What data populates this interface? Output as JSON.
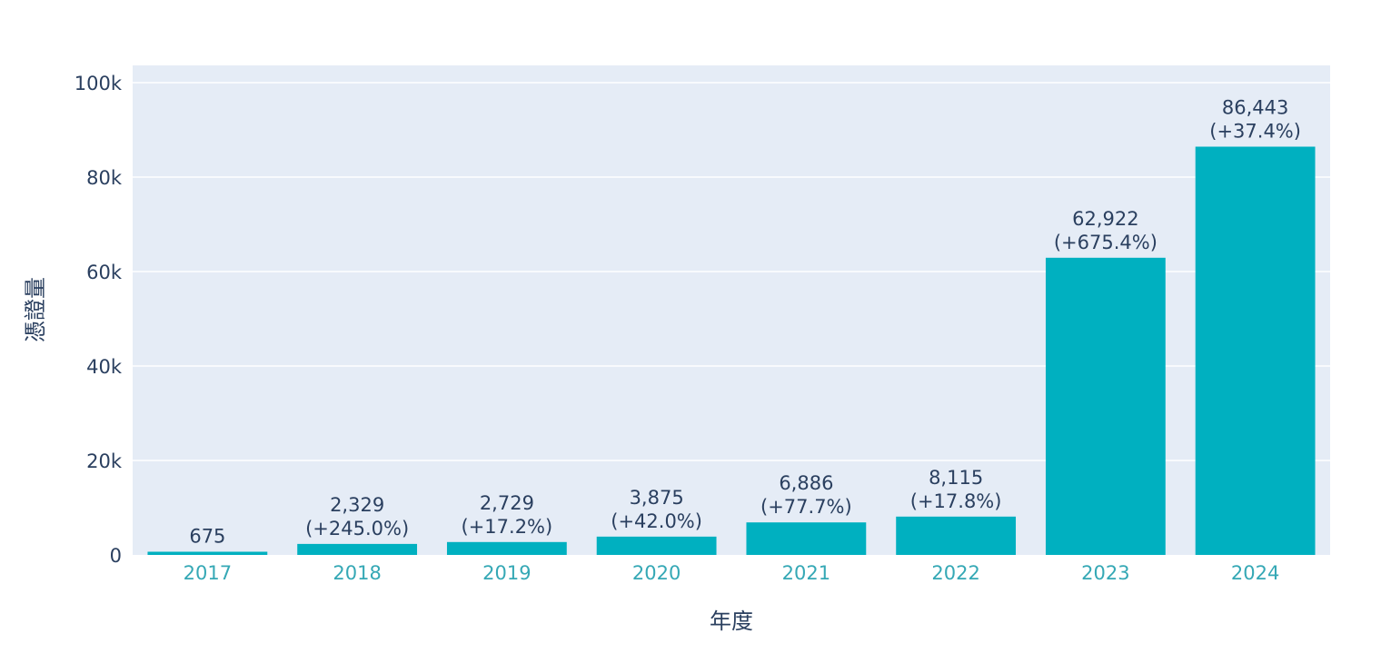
{
  "chart_data": {
    "type": "bar",
    "title": "",
    "xlabel": "年度",
    "ylabel": "憑證量",
    "categories": [
      "2017",
      "2018",
      "2019",
      "2020",
      "2021",
      "2022",
      "2023",
      "2024"
    ],
    "values": [
      675,
      2329,
      2729,
      3875,
      6886,
      8115,
      62922,
      86443
    ],
    "value_labels": [
      "675",
      "2,329",
      "2,729",
      "3,875",
      "6,886",
      "8,115",
      "62,922",
      "86,443"
    ],
    "growth_labels": [
      "",
      "(+245.0%)",
      "(+17.2%)",
      "(+42.0%)",
      "(+77.7%)",
      "(+17.8%)",
      "(+675.4%)",
      "(+37.4%)"
    ],
    "ylim": [
      0,
      103500
    ],
    "yticks": [
      0,
      20000,
      40000,
      60000,
      80000,
      100000
    ],
    "ytick_labels": [
      "0",
      "20k",
      "40k",
      "60k",
      "80k",
      "100k"
    ],
    "grid": true,
    "legend": "none",
    "colors": {
      "bar": "#00b0c0",
      "plot_background": "#e5ecf6",
      "gridline": "#ffffff",
      "text": "#2a3f5f",
      "xtick_text": "#35a8b5"
    }
  }
}
